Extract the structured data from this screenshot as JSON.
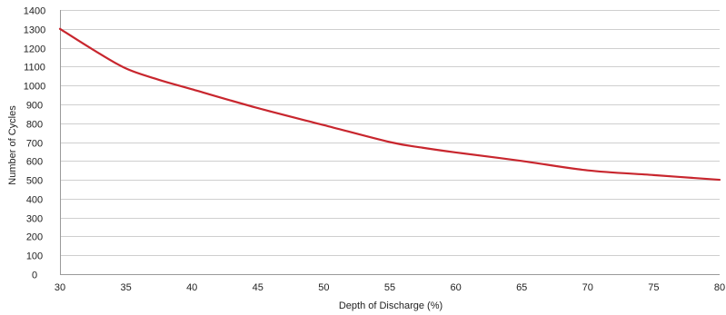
{
  "chart_data": {
    "type": "line",
    "title": "",
    "xlabel": "Depth of Discharge (%)",
    "ylabel": "Number of Cycles",
    "xlim": [
      30,
      80
    ],
    "ylim": [
      0,
      1400
    ],
    "xticks": [
      30,
      35,
      40,
      45,
      50,
      55,
      60,
      65,
      70,
      75,
      80
    ],
    "yticks": [
      0,
      100,
      200,
      300,
      400,
      500,
      600,
      700,
      800,
      900,
      1000,
      1100,
      1200,
      1300,
      1400
    ],
    "grid": "horizontal",
    "legend": "none",
    "series": [
      {
        "color": "#c8262e",
        "x": [
          30,
          32.5,
          35,
          37.5,
          40,
          45,
          50,
          55,
          57.5,
          60,
          65,
          70,
          75,
          80
        ],
        "y": [
          1300,
          1190,
          1090,
          1030,
          980,
          880,
          790,
          700,
          670,
          645,
          600,
          550,
          525,
          500
        ]
      }
    ]
  }
}
